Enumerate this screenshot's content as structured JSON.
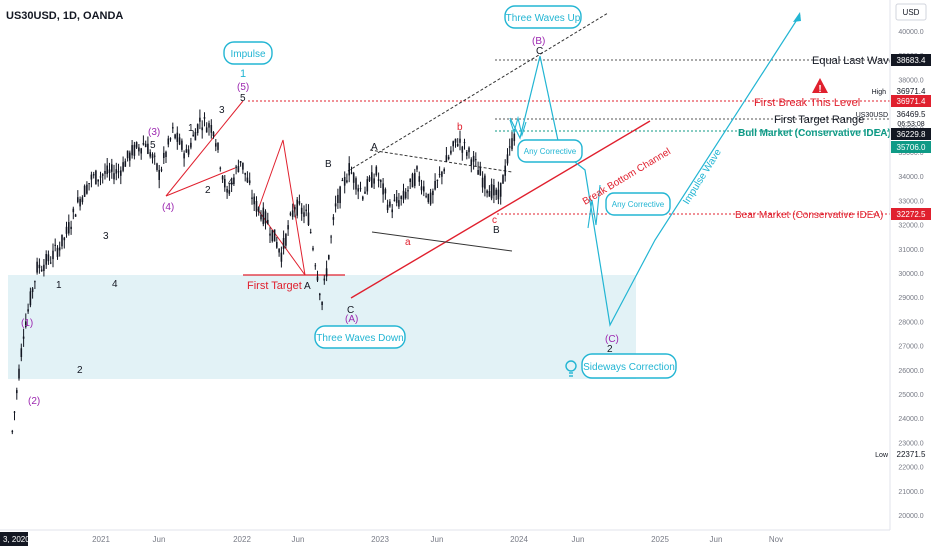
{
  "header": {
    "title": "US30USD, 1D, OANDA"
  },
  "price_axis": {
    "currency": "USD",
    "ticks": [
      "40000.0",
      "39000.0",
      "38000.0",
      "37000.0",
      "36000.0",
      "35000.0",
      "34000.0",
      "33000.0",
      "32000.0",
      "31000.0",
      "30000.0",
      "29000.0",
      "28000.0",
      "27000.0",
      "26000.0",
      "25000.0",
      "24000.0",
      "23000.0",
      "22000.0",
      "21000.0",
      "20000.0"
    ],
    "labels": {
      "equal_last_wave": "38683.4",
      "high_tag": "High",
      "high_value": "36971.4",
      "first_break": "36971.4",
      "symbol": "US30USD",
      "last_price": "36469.5",
      "countdown": "06:53:08",
      "first_target_range": "36229.8",
      "bull_market": "35706.0",
      "bear_market": "32272.5",
      "low_tag": "Low",
      "low_value": "22371.5"
    }
  },
  "time_axis": {
    "first": "3, 2020",
    "ticks": [
      "2021",
      "Jun",
      "2022",
      "Jun",
      "2023",
      "Jun",
      "2024",
      "Jun",
      "2025",
      "Jun",
      "Nov"
    ]
  },
  "annotations": {
    "impulse": "Impulse",
    "three_waves_up": "Three Waves Up",
    "three_waves_down": "Three Waves Down",
    "any_corrective_1": "Any Corrective",
    "any_corrective_2": "Any Corrective",
    "sideways_correction": "Sideways Correction",
    "equal_last_wave": "Equal Last Wave",
    "first_break": "First Break This Level",
    "first_target_range": "First Target Range",
    "bull_market": "Bull Market (Conservative IDEA)",
    "bear_market": "Bear Market (Conservative IDEA)",
    "first_target": "First Target",
    "break_bottom_channel": "Break Bottom Channel",
    "impulse_wave": "Impulse Wave",
    "warning_symbol": "!"
  },
  "wave_labels": {
    "w1_paren": "(1)",
    "w2_paren": "(2)",
    "w3_paren": "(3)",
    "w4_paren": "(4)",
    "w5_paren": "(5)",
    "w1_top": "1",
    "w1_early": "1",
    "w2_early": "2",
    "w3_early": "3",
    "w4_early": "4",
    "w1_mid": "1",
    "w2_mid": "2",
    "w3_mid": "3",
    "w4_mid": "4",
    "w5_mid": "5",
    "w5_peak": "5",
    "A_first_target": "A",
    "B_mid": "B",
    "C_low": "C",
    "A_paren_low": "(A)",
    "A_2023": "A",
    "B_paren": "(B)",
    "C_top": "C",
    "a_red": "a",
    "b_red": "b",
    "c_red": "c",
    "B_late": "B",
    "C_paren_future": "(C)",
    "two_future": "2"
  },
  "colors": {
    "purple": "#9c27b0",
    "red": "#e0202e",
    "cyan": "#22b5d3",
    "teal": "#0f9a86",
    "zone": "#d8edf3",
    "black": "#131722"
  },
  "chart_data": {
    "type": "line",
    "title": "US30USD, 1D, OANDA",
    "xlabel": "",
    "ylabel": "",
    "ylim": [
      19000,
      41500
    ],
    "x": [
      "2020-11",
      "2020-12",
      "2021-01",
      "2021-02",
      "2021-03",
      "2021-04",
      "2021-05",
      "2021-06",
      "2021-07",
      "2021-08",
      "2021-09",
      "2021-10",
      "2021-11",
      "2021-12",
      "2022-01",
      "2022-02",
      "2022-03",
      "2022-04",
      "2022-05",
      "2022-06",
      "2022-07",
      "2022-08",
      "2022-09",
      "2022-10",
      "2022-11",
      "2022-12",
      "2023-01",
      "2023-02",
      "2023-03",
      "2023-04",
      "2023-05",
      "2023-06",
      "2023-07",
      "2023-08",
      "2023-09",
      "2023-10",
      "2023-11",
      "2023-12"
    ],
    "series": [
      {
        "values": [
          27600,
          30200,
          30600,
          31400,
          32900,
          33900,
          34100,
          34200,
          35000,
          35400,
          34100,
          35800,
          34900,
          36300,
          36000,
          33200,
          34700,
          32900,
          32100,
          30800,
          32800,
          32300,
          28800,
          32700,
          34300,
          33300,
          34100,
          32700,
          33100,
          34100,
          33000,
          34400,
          35500,
          34800,
          33700,
          33100,
          35400,
          37200
        ]
      }
    ]
  }
}
